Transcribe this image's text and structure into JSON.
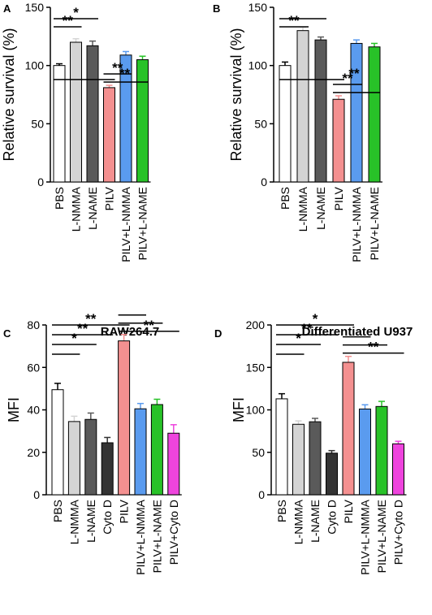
{
  "chart_data": [
    {
      "type": "bar",
      "panel": "A",
      "title": "",
      "ylabel": "Relative survival (%)",
      "xlabel": "",
      "ylim": [
        0,
        150
      ],
      "yticks": [
        0,
        50,
        100,
        150
      ],
      "categories": [
        "PBS",
        "L-NMMA",
        "L-NAME",
        "PILV",
        "PILV+L-NMMA",
        "PILV+L-NAME"
      ],
      "values": [
        100,
        120,
        117,
        81,
        109,
        105
      ],
      "errors": [
        1.5,
        3,
        4,
        2,
        3,
        3
      ],
      "colors": [
        "#ffffff",
        "#d4d4d4",
        "#5a5a5a",
        "#f49090",
        "#5a9bef",
        "#28c228"
      ],
      "significance": [
        {
          "from": 0,
          "to": 1,
          "label": "**"
        },
        {
          "from": 0,
          "to": 2,
          "label": "*"
        },
        {
          "from": 0,
          "to": 3,
          "label": "**"
        },
        {
          "from": 3,
          "to": 4,
          "label": "**"
        },
        {
          "from": 3,
          "to": 5,
          "label": ""
        }
      ]
    },
    {
      "type": "bar",
      "panel": "B",
      "title": "",
      "ylabel": "Relative survival (%)",
      "xlabel": "",
      "ylim": [
        0,
        150
      ],
      "yticks": [
        0,
        50,
        100,
        150
      ],
      "categories": [
        "PBS",
        "L-NMMA",
        "L-NAME",
        "PILV",
        "PILV+L-NMMA",
        "PILV+L-NAME"
      ],
      "values": [
        100,
        130,
        122,
        71,
        119,
        116
      ],
      "errors": [
        3,
        3,
        2.5,
        3,
        3,
        3
      ],
      "colors": [
        "#ffffff",
        "#d4d4d4",
        "#5a5a5a",
        "#f49090",
        "#5a9bef",
        "#28c228"
      ],
      "significance": [
        {
          "from": 0,
          "to": 1,
          "label": "**"
        },
        {
          "from": 0,
          "to": 2,
          "label": ""
        },
        {
          "from": 0,
          "to": 3,
          "label": "**"
        },
        {
          "from": 3,
          "to": 4,
          "label": "**"
        },
        {
          "from": 3,
          "to": 5,
          "label": ""
        }
      ]
    },
    {
      "type": "bar",
      "panel": "C",
      "title": "RAW264.7",
      "ylabel": "MFI",
      "xlabel": "",
      "ylim": [
        0,
        80
      ],
      "yticks": [
        0,
        20,
        40,
        60,
        80
      ],
      "categories": [
        "PBS",
        "L-NMMA",
        "L-NAME",
        "Cyto D",
        "PILV",
        "PILV+L-NMMA",
        "PILV+L-NAME",
        "PILV+Cyto D"
      ],
      "values": [
        49.5,
        34.5,
        35.5,
        24.5,
        72.5,
        40.5,
        42.5,
        29
      ],
      "errors": [
        3,
        2.5,
        3,
        2.5,
        3,
        2.5,
        2.5,
        4
      ],
      "colors": [
        "#ffffff",
        "#d4d4d4",
        "#5a5a5a",
        "#333333",
        "#f49090",
        "#5a9bef",
        "#28c228",
        "#ee44dd"
      ],
      "significance": [
        {
          "from": 0,
          "to": 1,
          "label": ""
        },
        {
          "from": 0,
          "to": 2,
          "label": "*"
        },
        {
          "from": 0,
          "to": 3,
          "label": "**"
        },
        {
          "from": 0,
          "to": 4,
          "label": "**"
        },
        {
          "from": 4,
          "to": 5,
          "label": ""
        },
        {
          "from": 4,
          "to": 6,
          "label": ""
        },
        {
          "from": 4,
          "to": 7,
          "label": "**"
        }
      ]
    },
    {
      "type": "bar",
      "panel": "D",
      "title": "Differentiated U937",
      "ylabel": "MFI",
      "xlabel": "",
      "ylim": [
        0,
        200
      ],
      "yticks": [
        0,
        50,
        100,
        150,
        200
      ],
      "categories": [
        "PBS",
        "L-NMMA",
        "L-NAME",
        "Cyto D",
        "PILV",
        "PILV+L-NMMA",
        "PILV+L-NAME",
        "PILV+Cyto D"
      ],
      "values": [
        113,
        83,
        86,
        49,
        156,
        101,
        104,
        60
      ],
      "errors": [
        6,
        4,
        4,
        3,
        7,
        5,
        6,
        3
      ],
      "colors": [
        "#ffffff",
        "#d4d4d4",
        "#5a5a5a",
        "#333333",
        "#f49090",
        "#5a9bef",
        "#28c228",
        "#ee44dd"
      ],
      "significance": [
        {
          "from": 0,
          "to": 1,
          "label": ""
        },
        {
          "from": 0,
          "to": 2,
          "label": "*"
        },
        {
          "from": 0,
          "to": 3,
          "label": "**"
        },
        {
          "from": 0,
          "to": 4,
          "label": "*"
        },
        {
          "from": 4,
          "to": 5,
          "label": ""
        },
        {
          "from": 4,
          "to": 6,
          "label": ""
        },
        {
          "from": 4,
          "to": 7,
          "label": "**"
        }
      ]
    }
  ]
}
